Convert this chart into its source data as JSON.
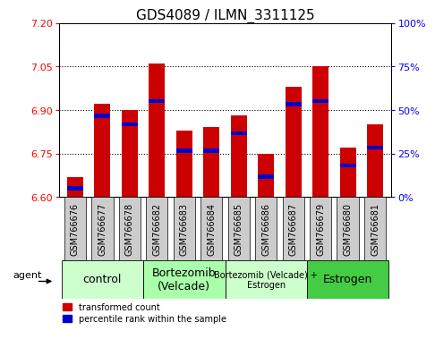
{
  "title": "GDS4089 / ILMN_3311125",
  "samples": [
    "GSM766676",
    "GSM766677",
    "GSM766678",
    "GSM766682",
    "GSM766683",
    "GSM766684",
    "GSM766685",
    "GSM766686",
    "GSM766687",
    "GSM766679",
    "GSM766680",
    "GSM766681"
  ],
  "bar_values": [
    6.67,
    6.92,
    6.9,
    7.06,
    6.83,
    6.84,
    6.88,
    6.75,
    6.98,
    7.05,
    6.77,
    6.85
  ],
  "percentile_values": [
    6.63,
    6.88,
    6.85,
    6.93,
    6.76,
    6.76,
    6.82,
    6.67,
    6.92,
    6.93,
    6.71,
    6.77
  ],
  "ylim_left": [
    6.6,
    7.2
  ],
  "ylim_right": [
    0,
    100
  ],
  "yticks_left": [
    6.6,
    6.75,
    6.9,
    7.05,
    7.2
  ],
  "yticks_right": [
    0,
    25,
    50,
    75,
    100
  ],
  "ytick_labels_right": [
    "0%",
    "25%",
    "50%",
    "75%",
    "100%"
  ],
  "bar_color": "#CC0000",
  "percentile_color": "#0000CC",
  "agent_groups": [
    {
      "label": "control",
      "start": 0,
      "end": 3,
      "color": "#ccffcc",
      "fontsize": 9
    },
    {
      "label": "Bortezomib\n(Velcade)",
      "start": 3,
      "end": 6,
      "color": "#aaffaa",
      "fontsize": 9
    },
    {
      "label": "Bortezomib (Velcade) +\nEstrogen",
      "start": 6,
      "end": 9,
      "color": "#ccffcc",
      "fontsize": 7
    },
    {
      "label": "Estrogen",
      "start": 9,
      "end": 12,
      "color": "#44cc44",
      "fontsize": 9
    }
  ],
  "agent_label": "agent",
  "legend_red": "transformed count",
  "legend_blue": "percentile rank within the sample",
  "bar_width": 0.6,
  "base_value": 6.6,
  "background_color": "#ffffff",
  "title_fontsize": 11,
  "tick_fontsize": 8,
  "label_fontsize": 7,
  "grid_yticks": [
    6.75,
    6.9,
    7.05
  ],
  "sample_box_color": "#cccccc",
  "n_samples": 12
}
